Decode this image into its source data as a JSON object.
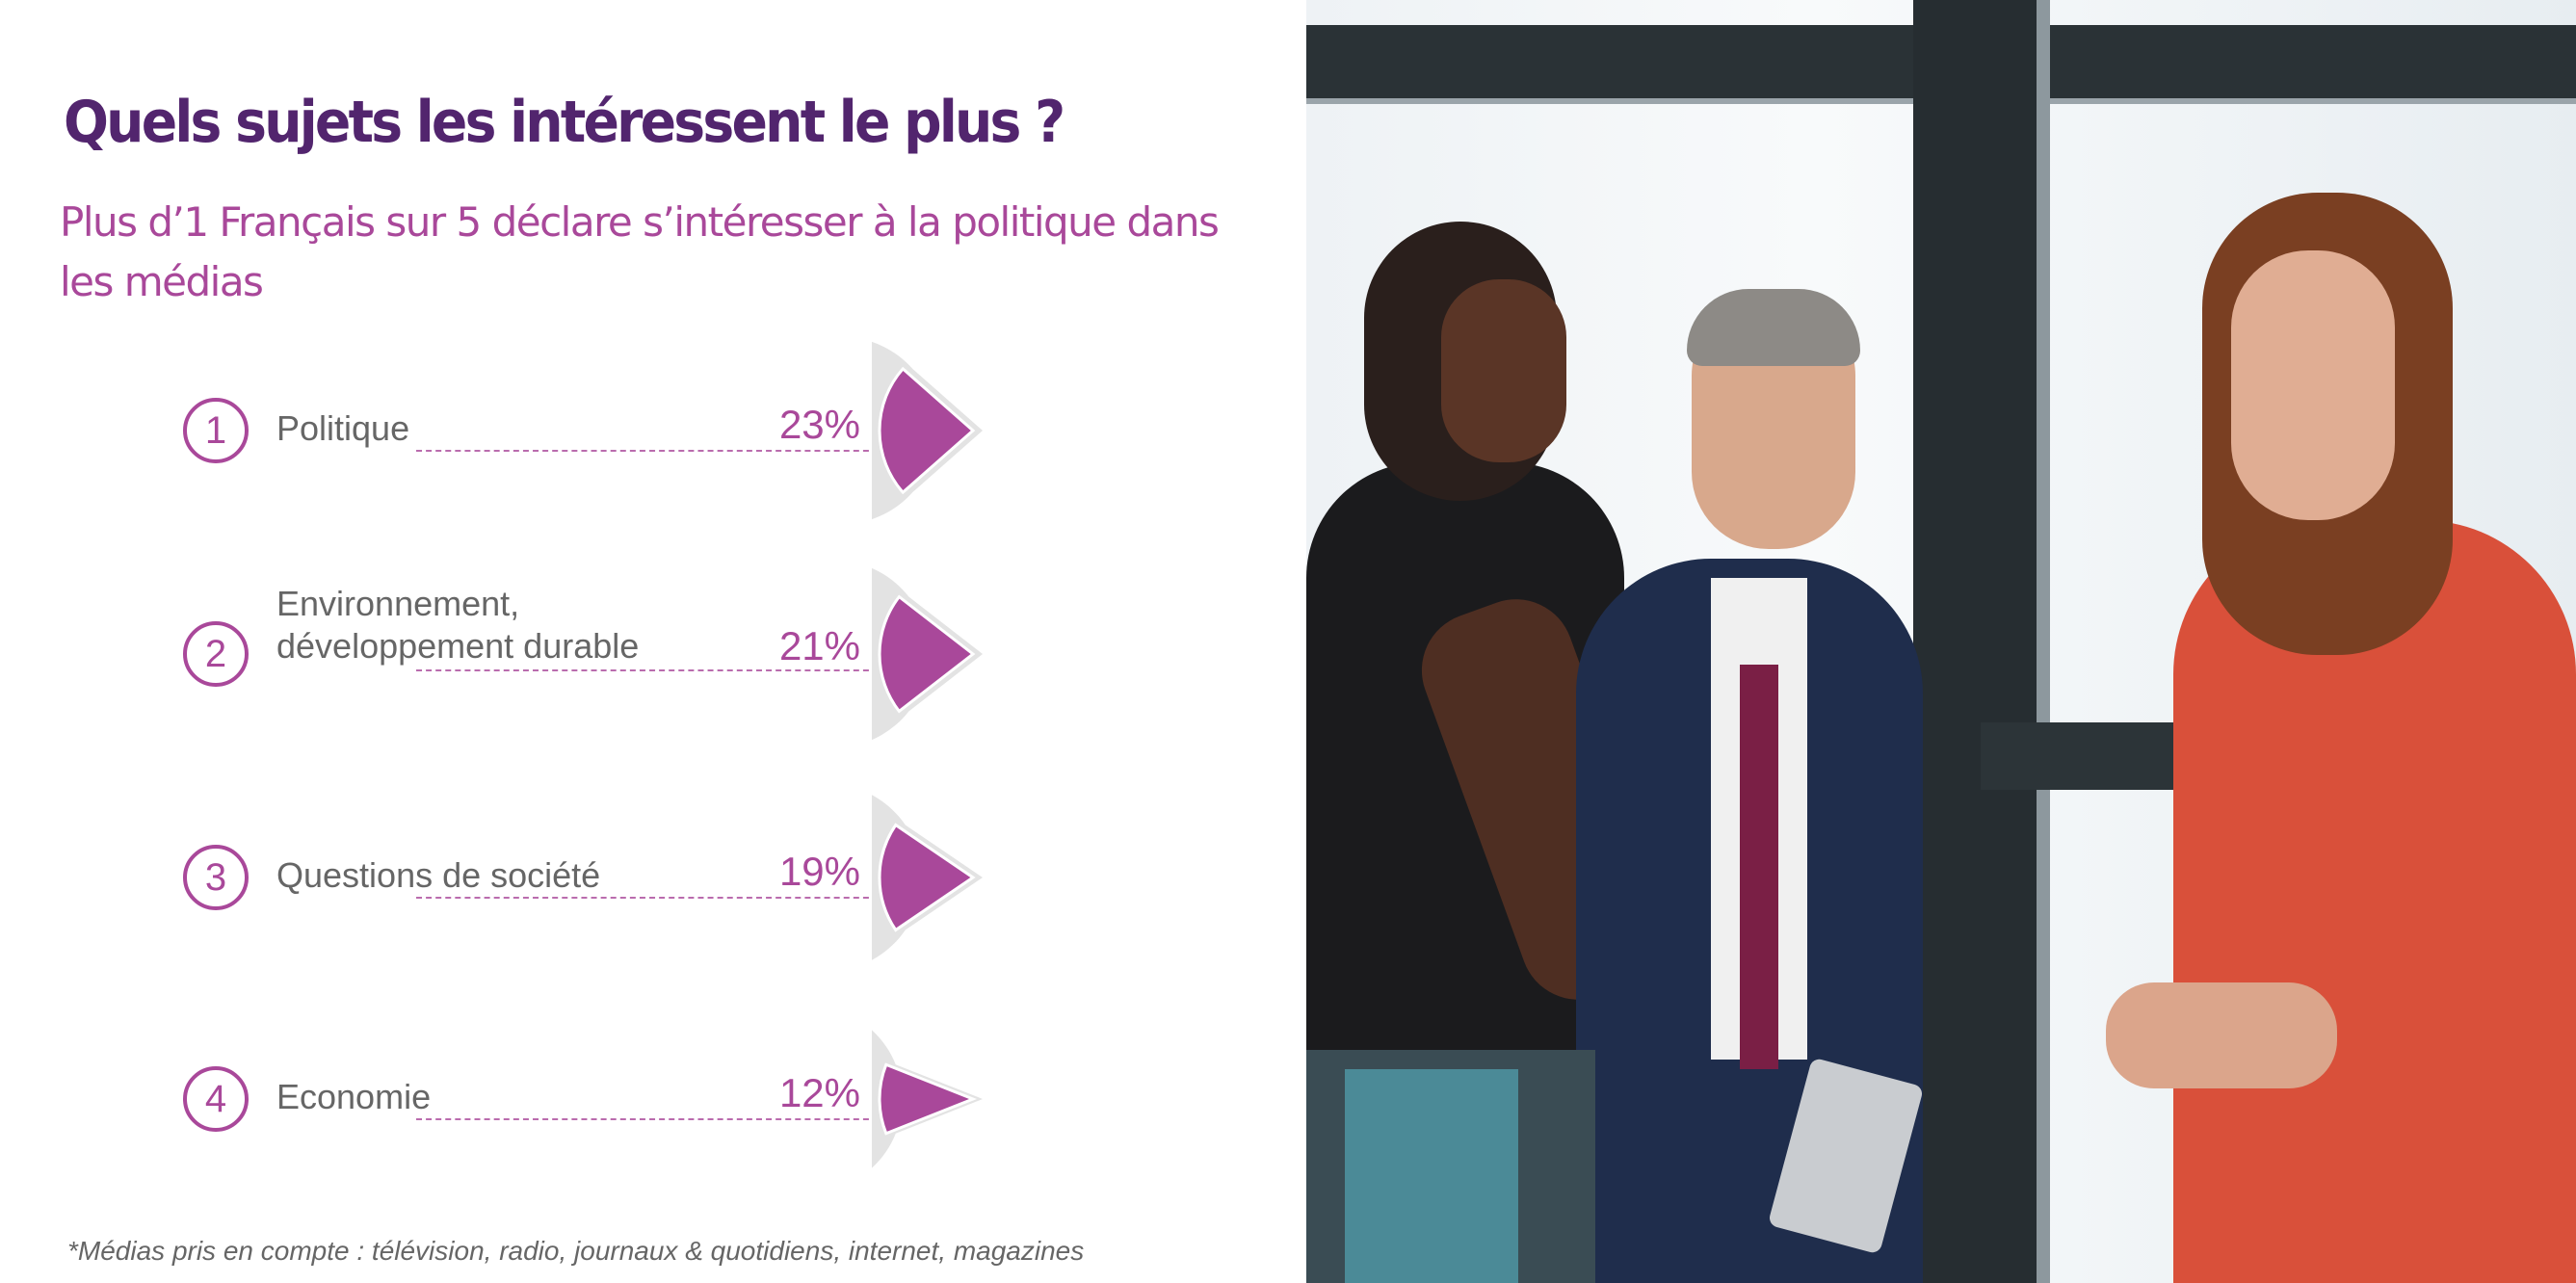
{
  "title": "Quels sujets les intéressent le plus ?",
  "subtitle": "Plus d’1 Français sur 5 déclare s’intéresser à la politique dans les médias",
  "items": [
    {
      "rank": "1",
      "label": "Politique",
      "percent_label": "23%"
    },
    {
      "rank": "2",
      "label": "Environnement, développement durable",
      "percent_label": "21%"
    },
    {
      "rank": "3",
      "label": "Questions de société",
      "percent_label": "19%"
    },
    {
      "rank": "4",
      "label": "Economie",
      "percent_label": "12%"
    }
  ],
  "footnote": "*Médias pris en compte : télévision, radio, journaux & quotidiens, internet, magazines",
  "colors": {
    "accent": "#a9489a",
    "title": "#52256e",
    "pie_rest": "#e3e3e3"
  },
  "chart_data": {
    "type": "pie",
    "title": "Quels sujets les intéressent le plus ?",
    "categories": [
      "Politique",
      "Environnement, développement durable",
      "Questions de société",
      "Economie"
    ],
    "values": [
      23,
      21,
      19,
      12
    ],
    "unit": "%"
  }
}
